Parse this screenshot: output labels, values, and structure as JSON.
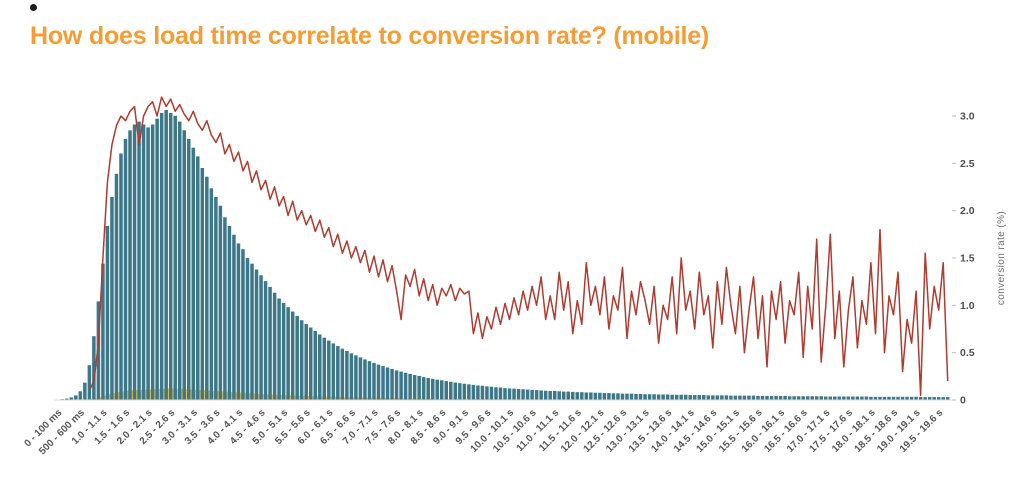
{
  "page": {
    "title": "How does load time correlate to conversion rate? (mobile)",
    "colors": {
      "title": "#f79b33",
      "bars": "#3c7889",
      "line": "#b23a2e",
      "area": "#edc24b",
      "axis_text": "#555555"
    }
  },
  "chart_data": {
    "type": "bar",
    "title": "How does load time correlate to conversion rate? (mobile)",
    "x_axis": {
      "bucket_width_ms": 100,
      "label_every_n_buckets": 5,
      "labels": [
        "0 - 100 ms",
        "500 - 600 ms",
        "1.0 - 1.1 s",
        "1.5 - 1.6 s",
        "2.0 - 2.1 s",
        "2.5 - 2.6 s",
        "3.0 - 3.1 s",
        "3.5 - 3.6 s",
        "4.0 - 4.1 s",
        "4.5 - 4.6 s",
        "5.0 - 5.1 s",
        "5.5 - 5.6 s",
        "6.0 - 6.1 s",
        "6.5 - 6.6 s",
        "7.0 - 7.1 s",
        "7.5 - 7.6 s",
        "8.0 - 8.1 s",
        "8.5 - 8.6 s",
        "9.0 - 9.1 s",
        "9.5 - 9.6 s",
        "10.0 - 10.1 s",
        "10.5 - 10.6 s",
        "11.0 - 11.1 s",
        "11.5 - 11.6 s",
        "12.0 - 12.1 s",
        "12.5 - 12.6 s",
        "13.0 - 13.1 s",
        "13.5 - 13.6 s",
        "14.0 - 14.1 s",
        "14.5 - 14.6 s",
        "15.0 - 15.1 s",
        "15.5 - 15.6 s",
        "16.0 - 16.1 s",
        "16.5 - 16.6 s",
        "17.0 - 17.1 s",
        "17.5 - 17.6 s",
        "18.0 - 18.1 s",
        "18.5 - 18.6 s",
        "19.0 - 19.1 s",
        "19.5 - 19.6 s"
      ]
    },
    "y_right": {
      "label": "conversion rate (%)",
      "ticks": [
        "0",
        "0.5",
        "1.0",
        "1.5",
        "2.0",
        "2.5",
        "3.0"
      ],
      "tick_values": [
        0,
        0.5,
        1,
        1.5,
        2,
        2.5,
        3
      ],
      "max": 3.3
    },
    "series": [
      {
        "name": "histogram-bars",
        "kind": "bar",
        "color": "#3c7889",
        "unit": "relative session volume (max = 100, no visible axis)",
        "values": [
          0.3,
          0.5,
          0.9,
          1.6,
          3,
          6,
          12,
          22,
          34,
          47,
          60,
          70,
          78,
          85,
          90,
          93,
          95,
          96,
          95,
          94,
          95,
          97,
          99,
          100,
          99,
          98,
          96,
          93,
          90,
          87,
          84,
          80,
          77,
          73,
          70,
          67,
          63,
          60,
          57,
          54,
          52,
          49,
          47,
          45,
          43,
          41,
          39,
          37,
          35,
          33.5,
          32,
          30.5,
          29,
          27.5,
          26.2,
          25,
          23.8,
          22.6,
          21.5,
          20.5,
          19.5,
          18.6,
          17.7,
          16.9,
          16.1,
          15.4,
          14.7,
          14,
          13.4,
          12.8,
          12.2,
          11.7,
          11.2,
          10.7,
          10.2,
          9.8,
          9.4,
          9,
          8.6,
          8.3,
          7.9,
          7.6,
          7.3,
          7,
          6.8,
          6.5,
          6.3,
          6,
          5.8,
          5.6,
          5.4,
          5.2,
          5,
          4.9,
          4.7,
          4.6,
          4.4,
          4.3,
          4.1,
          4,
          3.9,
          3.8,
          3.7,
          3.6,
          3.5,
          3.4,
          3.3,
          3.2,
          3.1,
          3.1,
          3,
          2.9,
          2.9,
          2.8,
          2.7,
          2.7,
          2.6,
          2.6,
          2.5,
          2.5,
          2.4,
          2.4,
          2.3,
          2.3,
          2.2,
          2.2,
          2.2,
          2.1,
          2.1,
          2,
          2,
          2,
          1.9,
          1.9,
          1.9,
          1.8,
          1.8,
          1.8,
          1.8,
          1.7,
          1.7,
          1.7,
          1.7,
          1.6,
          1.6,
          1.6,
          1.6,
          1.6,
          1.5,
          1.5,
          1.5,
          1.5,
          1.5,
          1.5,
          1.4,
          1.4,
          1.4,
          1.4,
          1.4,
          1.4,
          1.4,
          1.3,
          1.3,
          1.3,
          1.3,
          1.3,
          1.3,
          1.3,
          1.3,
          1.2,
          1.2,
          1.2,
          1.2,
          1.2,
          1.2,
          1.2,
          1.2,
          1.2,
          1.2,
          1.1,
          1.1,
          1.1,
          1.1,
          1.1,
          1.1,
          1.1,
          1.1,
          1.1,
          1.1,
          1.1,
          1.1,
          1,
          1,
          1,
          1,
          1,
          1
        ]
      },
      {
        "name": "yellow-area",
        "kind": "area",
        "color": "#edc24b",
        "unit": "relative (same scale as histogram)",
        "values": [
          0,
          0,
          0,
          0,
          0,
          0.1,
          0.2,
          0.4,
          0.8,
          1.2,
          1.8,
          2.2,
          2.6,
          2.9,
          3.1,
          3.3,
          3.5,
          3.5,
          3.6,
          3.6,
          3.7,
          3.8,
          3.9,
          4,
          4,
          3.9,
          3.9,
          3.8,
          3.7,
          3.6,
          3.5,
          3.4,
          3.3,
          3.2,
          3.1,
          3,
          2.9,
          2.8,
          2.7,
          2.6,
          2.5,
          2.4,
          2.3,
          2.2,
          2.1,
          2,
          1.9,
          1.85,
          1.8,
          1.7,
          1.65,
          1.6,
          1.5,
          1.45,
          1.4,
          1.35,
          1.3,
          1.25,
          1.2,
          1.15,
          1.1,
          1.05,
          1,
          0.95,
          0.9,
          0.88,
          0.85,
          0.8,
          0.78,
          0.75,
          0.72,
          0.7,
          0.65,
          0.62,
          0.6,
          0.55,
          0.52,
          0.5,
          0.48,
          0.45,
          0.42,
          0.4,
          0.38,
          0.36,
          0.35,
          0.33,
          0.32,
          0.3,
          0.29,
          0.28,
          0.27,
          0.25,
          0.24,
          0.23,
          0.22,
          0.21,
          0.2,
          0.19,
          0.18,
          0.17,
          0.15
        ]
      },
      {
        "name": "conversion-rate-line",
        "kind": "line",
        "color": "#b23a2e",
        "unit": "%",
        "values": [
          null,
          null,
          null,
          null,
          null,
          null,
          0.1,
          0.2,
          0.6,
          1.5,
          2.3,
          2.7,
          2.9,
          3,
          2.95,
          3.05,
          3.1,
          2.7,
          3,
          3.1,
          3.15,
          3,
          3.2,
          3.1,
          3.18,
          3.05,
          3.12,
          3.02,
          2.95,
          3.05,
          2.92,
          2.85,
          2.95,
          2.8,
          2.72,
          2.82,
          2.6,
          2.7,
          2.52,
          2.62,
          2.42,
          2.52,
          2.3,
          2.42,
          2.22,
          2.32,
          2.12,
          2.25,
          2.05,
          2.15,
          1.95,
          2.1,
          1.9,
          2,
          1.85,
          1.95,
          1.78,
          1.9,
          1.72,
          1.82,
          1.62,
          1.75,
          1.55,
          1.68,
          1.5,
          1.62,
          1.45,
          1.58,
          1.35,
          1.52,
          1.3,
          1.48,
          1.25,
          1.42,
          1.15,
          0.85,
          1.32,
          1.2,
          1.38,
          1.1,
          1.28,
          1.05,
          1.22,
          1,
          1.18,
          1.1,
          1.22,
          1.05,
          1.18,
          1.12,
          1.15,
          0.7,
          0.92,
          0.65,
          0.88,
          0.75,
          0.98,
          0.8,
          1.02,
          0.85,
          1.08,
          0.9,
          1.15,
          0.95,
          1.2,
          1,
          1.3,
          0.85,
          1.1,
          0.85,
          1.35,
          0.95,
          1.25,
          0.7,
          1.05,
          0.8,
          1.45,
          1,
          1.2,
          0.9,
          1.3,
          0.75,
          1.1,
          0.95,
          1.4,
          0.65,
          1.15,
          0.9,
          1.25,
          1.05,
          0.8,
          1.2,
          0.6,
          1,
          0.85,
          1.3,
          0.7,
          1.5,
          0.95,
          1.15,
          0.75,
          1.35,
          0.9,
          1.1,
          0.55,
          1.25,
          0.8,
          1.4,
          1,
          0.7,
          1.2,
          0.5,
          0.95,
          1.3,
          0.65,
          1.1,
          0.35,
          1.15,
          0.85,
          1.25,
          0.6,
          1.05,
          0.9,
          1.35,
          0.45,
          1.2,
          0.75,
          1.7,
          0.4,
          1,
          1.75,
          0.65,
          1.15,
          0.35,
          0.95,
          1.3,
          0.55,
          1.05,
          0.8,
          1.45,
          0.7,
          1.8,
          0.5,
          1.1,
          0.9,
          1.35,
          0.3,
          0.85,
          0.6,
          1.15,
          0.05,
          1.55,
          0.75,
          1.2,
          0.95,
          1.45,
          0.2
        ]
      }
    ]
  }
}
